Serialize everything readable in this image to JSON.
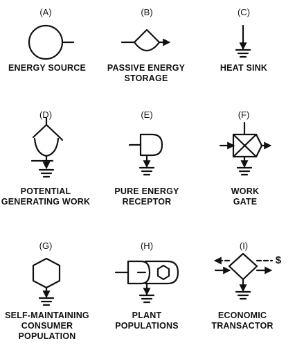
{
  "symbols": [
    {
      "letter": "(A)",
      "caption": "ENERGY SOURCE",
      "icon": "circle-energy-source-icon"
    },
    {
      "letter": "(B)",
      "caption": "PASSIVE ENERGY\nSTORAGE",
      "icon": "tank-storage-icon"
    },
    {
      "letter": "(C)",
      "caption": "HEAT SINK",
      "icon": "heat-sink-icon"
    },
    {
      "letter": "(D)",
      "caption": "POTENTIAL\nGENERATING WORK",
      "icon": "potential-generating-work-icon"
    },
    {
      "letter": "(E)",
      "caption": "PURE ENERGY\nRECEPTOR",
      "icon": "pure-energy-receptor-icon"
    },
    {
      "letter": "(F)",
      "caption": "WORK GATE",
      "icon": "work-gate-icon"
    },
    {
      "letter": "(G)",
      "caption": "SELF-MAINTAINING\nCONSUMER\nPOPULATION",
      "icon": "hexagon-consumer-icon"
    },
    {
      "letter": "(H)",
      "caption": "PLANT\nPOPULATIONS",
      "icon": "plant-population-icon"
    },
    {
      "letter": "(I)",
      "caption": "ECONOMIC\nTRANSACTOR",
      "icon": "economic-transactor-icon"
    }
  ],
  "dollar_label": "$"
}
